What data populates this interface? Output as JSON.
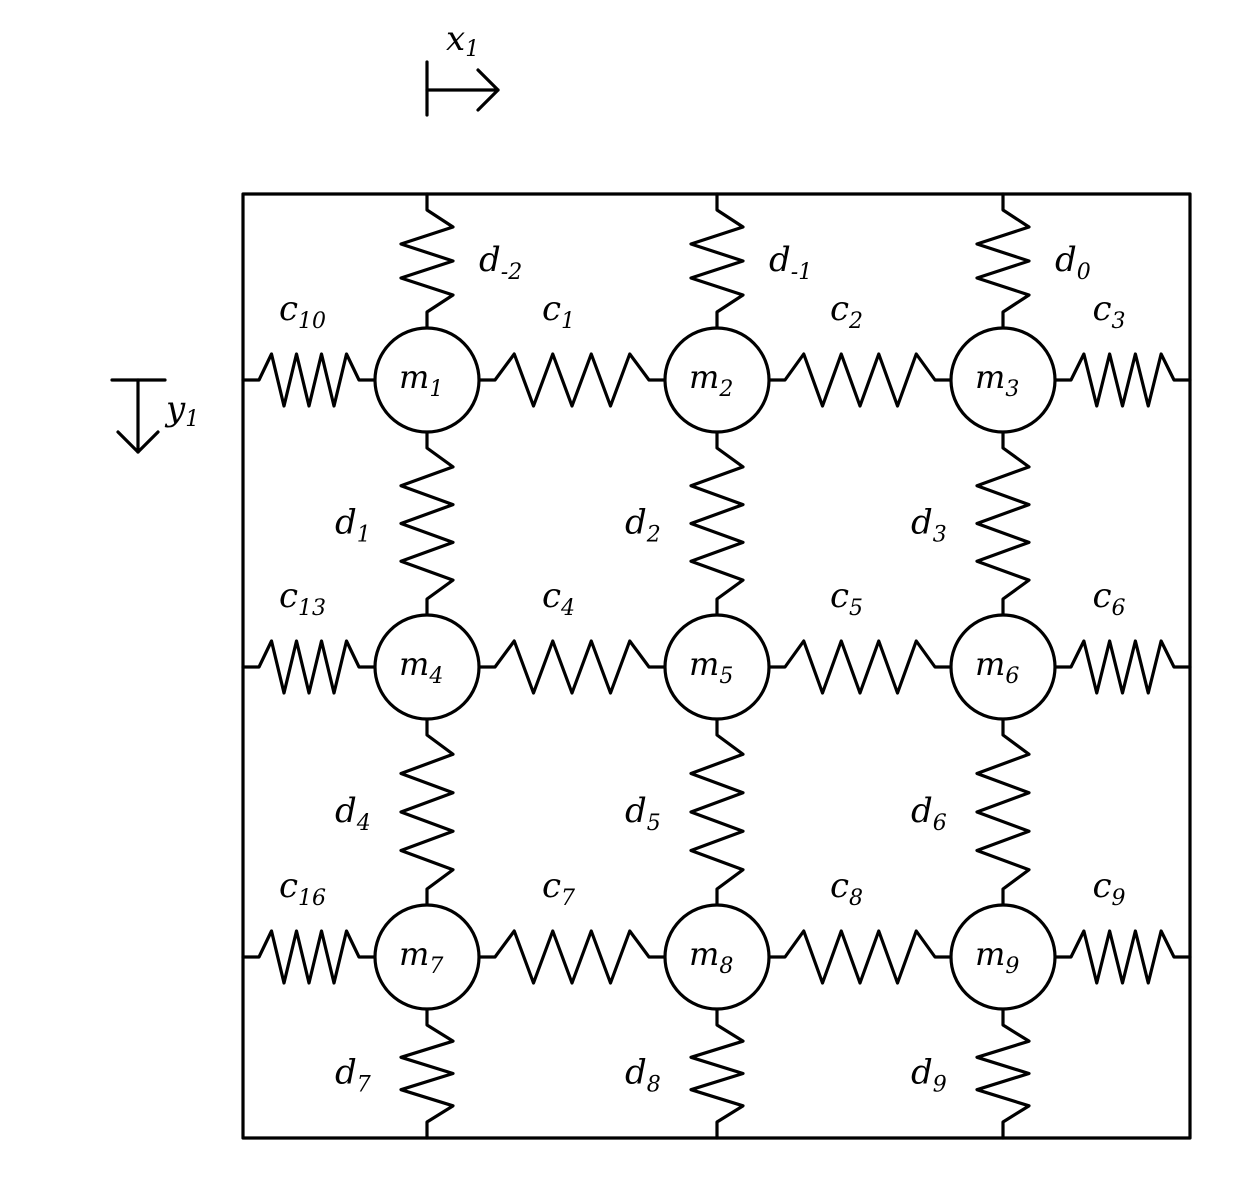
{
  "axes": {
    "x": {
      "name": "x",
      "subscript": "1"
    },
    "y": {
      "name": "y",
      "subscript": "1"
    }
  },
  "masses": [
    {
      "name": "m",
      "subscript": "1"
    },
    {
      "name": "m",
      "subscript": "2"
    },
    {
      "name": "m",
      "subscript": "3"
    },
    {
      "name": "m",
      "subscript": "4"
    },
    {
      "name": "m",
      "subscript": "5"
    },
    {
      "name": "m",
      "subscript": "6"
    },
    {
      "name": "m",
      "subscript": "7"
    },
    {
      "name": "m",
      "subscript": "8"
    },
    {
      "name": "m",
      "subscript": "9"
    }
  ],
  "horizontal_springs": [
    {
      "name": "c",
      "subscript": "10"
    },
    {
      "name": "c",
      "subscript": "1"
    },
    {
      "name": "c",
      "subscript": "2"
    },
    {
      "name": "c",
      "subscript": "3"
    },
    {
      "name": "c",
      "subscript": "13"
    },
    {
      "name": "c",
      "subscript": "4"
    },
    {
      "name": "c",
      "subscript": "5"
    },
    {
      "name": "c",
      "subscript": "6"
    },
    {
      "name": "c",
      "subscript": "16"
    },
    {
      "name": "c",
      "subscript": "7"
    },
    {
      "name": "c",
      "subscript": "8"
    },
    {
      "name": "c",
      "subscript": "9"
    }
  ],
  "vertical_springs": [
    {
      "name": "d",
      "subscript": "-2"
    },
    {
      "name": "d",
      "subscript": "-1"
    },
    {
      "name": "d",
      "subscript": "0"
    },
    {
      "name": "d",
      "subscript": "1"
    },
    {
      "name": "d",
      "subscript": "2"
    },
    {
      "name": "d",
      "subscript": "3"
    },
    {
      "name": "d",
      "subscript": "4"
    },
    {
      "name": "d",
      "subscript": "5"
    },
    {
      "name": "d",
      "subscript": "6"
    },
    {
      "name": "d",
      "subscript": "7"
    },
    {
      "name": "d",
      "subscript": "8"
    },
    {
      "name": "d",
      "subscript": "9"
    }
  ]
}
